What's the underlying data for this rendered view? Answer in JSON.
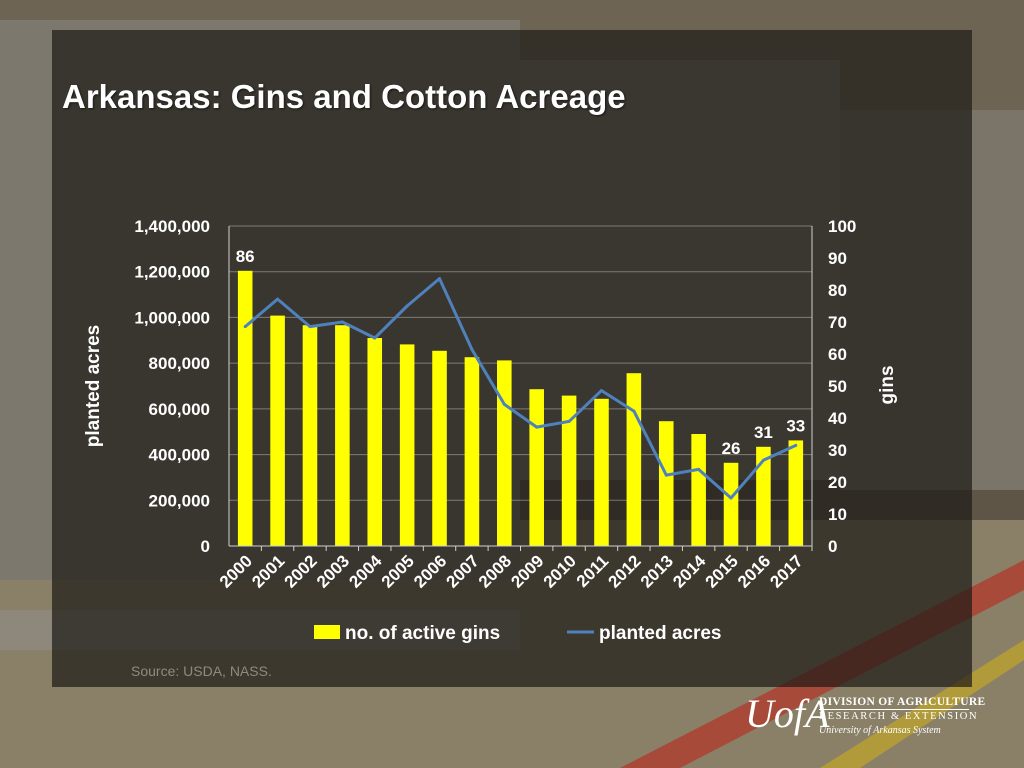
{
  "title": "Arkansas: Gins and Cotton Acreage",
  "source": "Source: USDA, NASS.",
  "logo": {
    "mark": "UofA",
    "line1": "DIVISION OF AGRICULTURE",
    "line2": "RESEARCH & EXTENSION",
    "line3": "University of Arkansas System"
  },
  "colors": {
    "bars": "#ffff00",
    "line": "#4f81bd",
    "text": "#ffffff"
  },
  "chart_data": {
    "type": "bar",
    "categories": [
      "2000",
      "2001",
      "2002",
      "2003",
      "2004",
      "2005",
      "2006",
      "2007",
      "2008",
      "2009",
      "2010",
      "2011",
      "2012",
      "2013",
      "2014",
      "2015",
      "2016",
      "2017"
    ],
    "series": [
      {
        "name": "no. of active gins",
        "type": "bar",
        "axis": "right",
        "values": [
          86,
          72,
          69,
          69,
          65,
          63,
          61,
          59,
          58,
          49,
          47,
          46,
          54,
          39,
          35,
          26,
          31,
          33
        ]
      },
      {
        "name": "planted acres",
        "type": "line",
        "axis": "left",
        "values": [
          960000,
          1080000,
          960000,
          980000,
          910000,
          1050000,
          1170000,
          860000,
          620000,
          520000,
          545000,
          680000,
          590000,
          310000,
          335000,
          210000,
          375000,
          440000
        ]
      }
    ],
    "data_labels": [
      {
        "category": "2000",
        "text": "86"
      },
      {
        "category": "2015",
        "text": "26"
      },
      {
        "category": "2016",
        "text": "31"
      },
      {
        "category": "2017",
        "text": "33"
      }
    ],
    "ylabel": "planted acres",
    "y2label": "gins",
    "ylim": [
      0,
      1400000
    ],
    "y2lim": [
      0,
      100
    ],
    "yticks": [
      "0",
      "200,000",
      "400,000",
      "600,000",
      "800,000",
      "1,000,000",
      "1,200,000",
      "1,400,000"
    ],
    "y2ticks": [
      "0",
      "10",
      "20",
      "30",
      "40",
      "50",
      "60",
      "70",
      "80",
      "90",
      "100"
    ],
    "grid": true,
    "legend": "bottom"
  }
}
